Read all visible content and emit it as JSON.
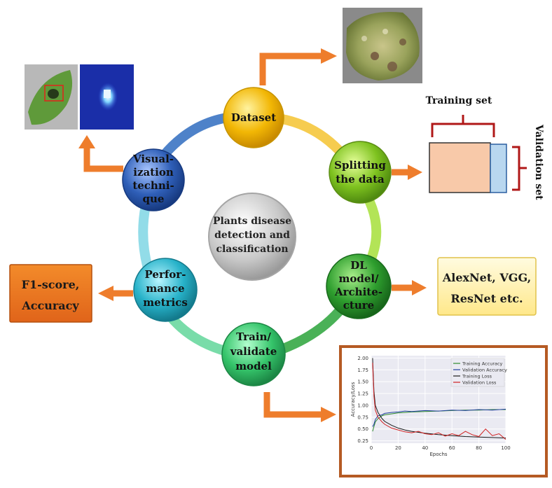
{
  "center": {
    "lines": [
      "Plants disease",
      "detection and",
      "classification"
    ]
  },
  "nodes": [
    {
      "id": "dataset",
      "lines": [
        "Dataset"
      ]
    },
    {
      "id": "splitting",
      "lines": [
        "Splitting",
        "the  data"
      ]
    },
    {
      "id": "dl-model",
      "lines": [
        "DL",
        "model/",
        "Archite-",
        "cture"
      ]
    },
    {
      "id": "train",
      "lines": [
        "Train/",
        "validate",
        "model"
      ]
    },
    {
      "id": "performance",
      "lines": [
        "Perfor-",
        "mance",
        "metrics"
      ]
    },
    {
      "id": "visualization",
      "lines": [
        "Visual-",
        "ization",
        "techni-",
        "que"
      ]
    }
  ],
  "split": {
    "training_label": "Training set",
    "validation_label": "Validation set"
  },
  "models_box": {
    "lines": [
      "AlexNet, VGG,",
      "ResNet etc."
    ]
  },
  "metrics_box": {
    "lines": [
      "F1-score,",
      "Accuracy"
    ]
  },
  "colors": {
    "dataset": "#f2b705",
    "splitting": "#7ec21f",
    "dl-model": "#2e9e2e",
    "train": "#35c46a",
    "performance": "#27b2c9",
    "visualization": "#2f5fb8",
    "arrow": "#ee7d2c",
    "ring": "#9fd6e0",
    "train_color": "#f8c9a9",
    "val_color": "#b9d7ef",
    "bracket": "#b01818",
    "chart_border": "#b55a23"
  },
  "chart_data": {
    "type": "line",
    "xlabel": "Epochs",
    "ylabel": "Accuracy/Loss",
    "xlim": [
      0,
      100
    ],
    "ylim": [
      0.2,
      2.05
    ],
    "xticks": [
      0,
      20,
      40,
      60,
      80,
      100
    ],
    "yticks": [
      0.25,
      0.5,
      0.75,
      1.0,
      1.25,
      1.5,
      1.75,
      2.0
    ],
    "ytick_labels": [
      "0.25",
      "0.50",
      "0.75",
      "1.00",
      "1.25",
      "1.50",
      "1.75",
      "2.00"
    ],
    "grid": true,
    "legend_position": "top-right",
    "series": [
      {
        "name": "Training Accuracy",
        "color": "#2e8b2e",
        "x": [
          1,
          2,
          3,
          5,
          8,
          10,
          15,
          20,
          25,
          30,
          40,
          50,
          60,
          70,
          80,
          90,
          100
        ],
        "y": [
          0.45,
          0.55,
          0.65,
          0.72,
          0.78,
          0.8,
          0.82,
          0.84,
          0.85,
          0.86,
          0.87,
          0.88,
          0.89,
          0.9,
          0.9,
          0.91,
          0.91
        ]
      },
      {
        "name": "Validation Accuracy",
        "color": "#2340a0",
        "x": [
          1,
          2,
          3,
          5,
          8,
          10,
          15,
          20,
          25,
          30,
          40,
          50,
          60,
          70,
          80,
          90,
          100
        ],
        "y": [
          0.55,
          0.6,
          0.7,
          0.78,
          0.8,
          0.83,
          0.85,
          0.86,
          0.88,
          0.87,
          0.89,
          0.88,
          0.9,
          0.89,
          0.91,
          0.9,
          0.92
        ]
      },
      {
        "name": "Training Loss",
        "color": "#1a1a1a",
        "x": [
          1,
          2,
          3,
          5,
          8,
          10,
          15,
          20,
          25,
          30,
          40,
          50,
          60,
          70,
          80,
          90,
          100
        ],
        "y": [
          2.0,
          1.3,
          1.0,
          0.85,
          0.72,
          0.66,
          0.58,
          0.52,
          0.48,
          0.45,
          0.41,
          0.38,
          0.36,
          0.34,
          0.33,
          0.32,
          0.31
        ]
      },
      {
        "name": "Validation Loss",
        "color": "#d02020",
        "x": [
          1,
          2,
          3,
          5,
          8,
          10,
          15,
          20,
          25,
          30,
          35,
          40,
          45,
          50,
          55,
          60,
          65,
          70,
          75,
          80,
          85,
          90,
          95,
          100
        ],
        "y": [
          1.9,
          1.2,
          0.9,
          0.75,
          0.65,
          0.6,
          0.52,
          0.48,
          0.44,
          0.42,
          0.45,
          0.4,
          0.38,
          0.42,
          0.35,
          0.4,
          0.36,
          0.45,
          0.38,
          0.34,
          0.5,
          0.36,
          0.4,
          0.28
        ]
      }
    ]
  }
}
